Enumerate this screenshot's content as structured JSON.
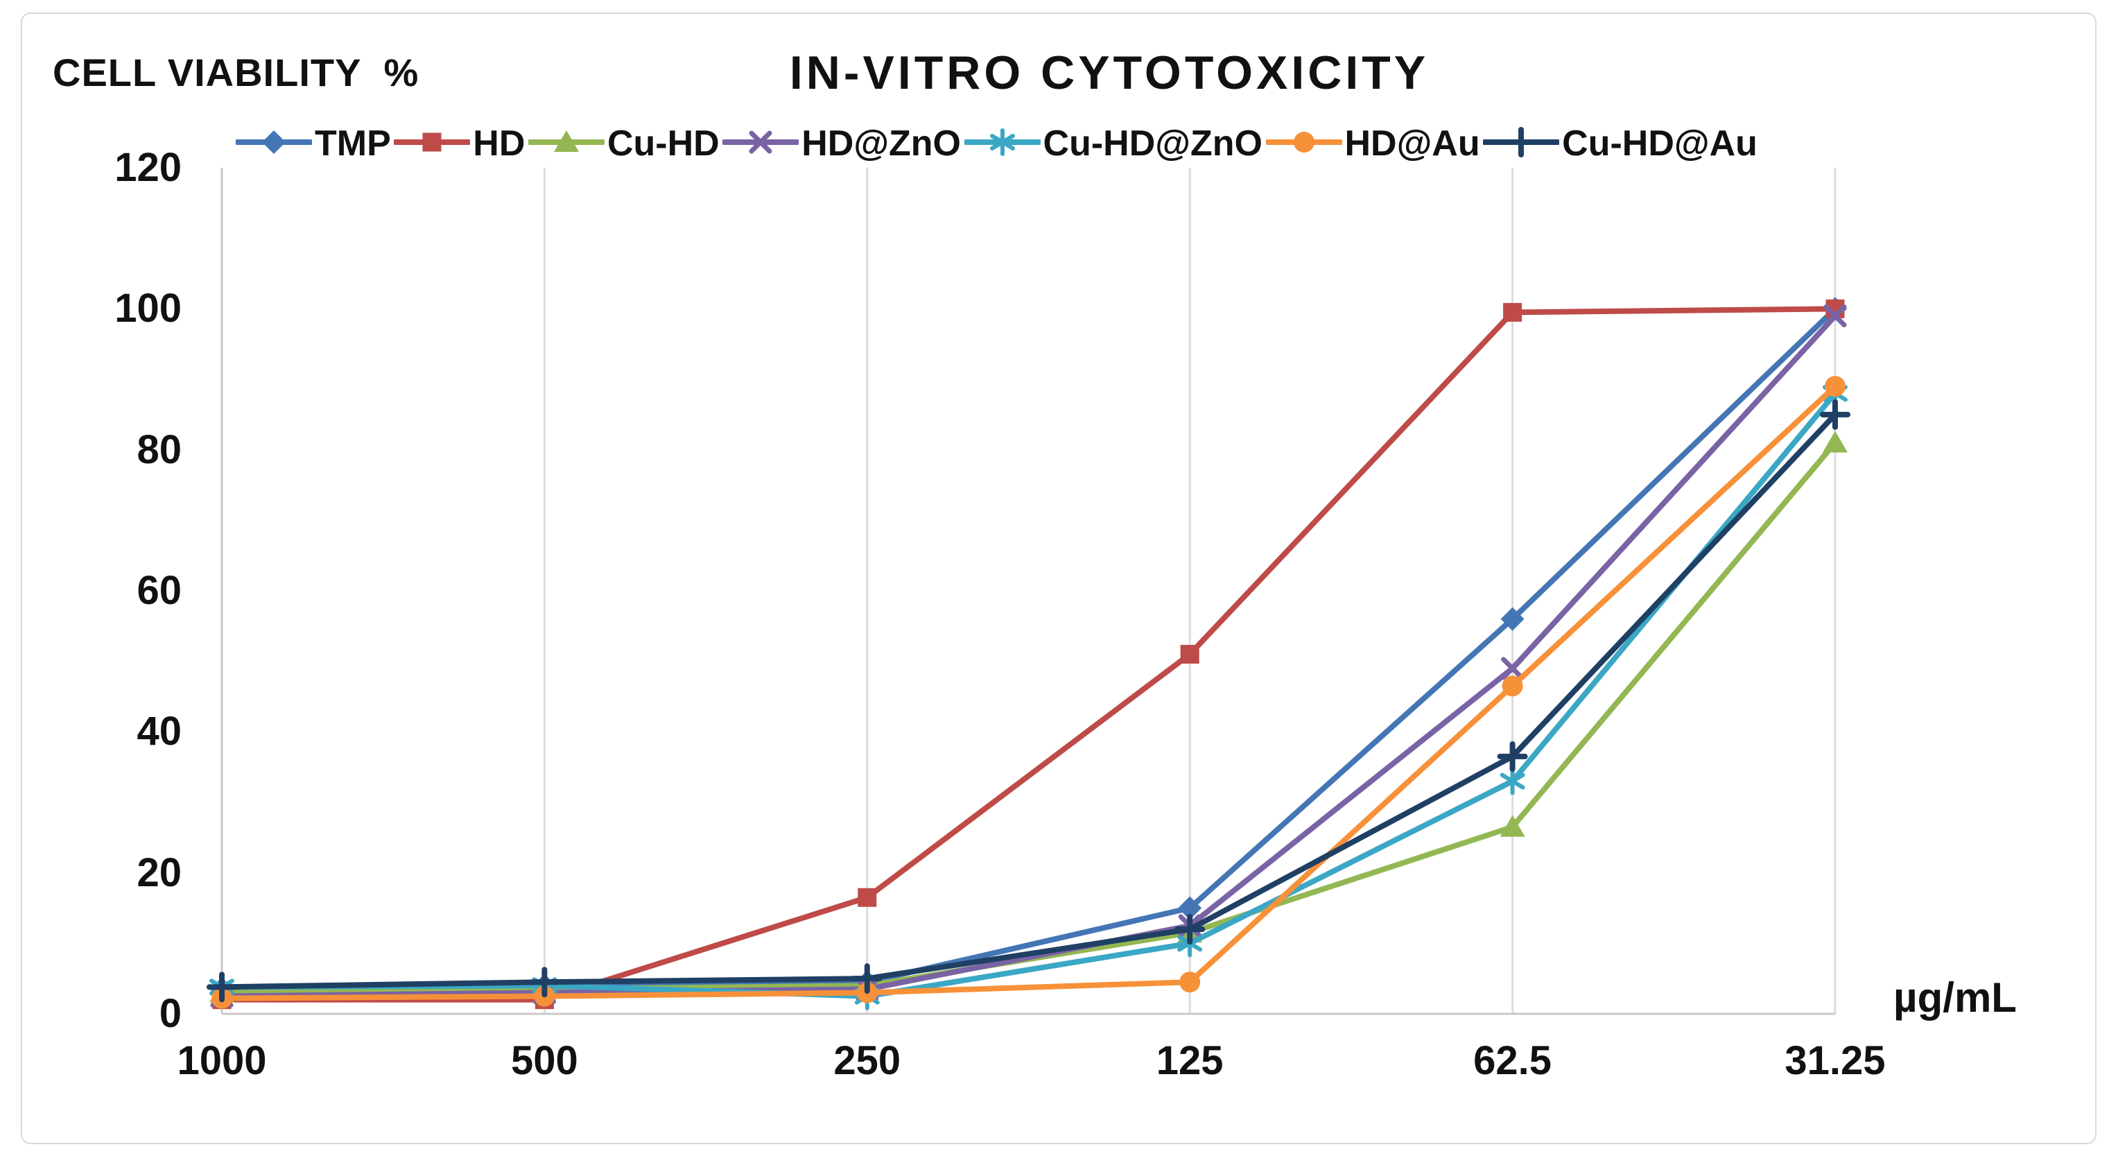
{
  "figure": {
    "y_axis_title": "CELL VIABILITY  %",
    "x_axis_unit": "µg/mL"
  },
  "chart_data": {
    "type": "line",
    "title": "IN-VITRO CYTOTOXICITY",
    "xlabel": "µg/mL",
    "ylabel": "CELL VIABILITY %",
    "categories": [
      "1000",
      "500",
      "250",
      "125",
      "62.5",
      "31.25"
    ],
    "x_axis_note": "concentration decreases left to right",
    "ylim": [
      0,
      120
    ],
    "y_ticks": [
      0,
      20,
      40,
      60,
      80,
      100,
      120
    ],
    "grid": "vertical-only",
    "legend_position": "top",
    "series": [
      {
        "name": "TMP",
        "color": "#4476B5",
        "marker": "diamond",
        "values": [
          3.5,
          4,
          4.5,
          15,
          56,
          100
        ]
      },
      {
        "name": "HD",
        "color": "#BE4B48",
        "marker": "square",
        "values": [
          2,
          2,
          16.5,
          51,
          99.5,
          100
        ]
      },
      {
        "name": "Cu-HD",
        "color": "#93B752",
        "marker": "triangle",
        "values": [
          3,
          3.5,
          4,
          11.5,
          26.5,
          81
        ]
      },
      {
        "name": "HD@ZnO",
        "color": "#7A63A5",
        "marker": "x",
        "values": [
          2.5,
          3,
          3.5,
          12.5,
          49,
          99
        ]
      },
      {
        "name": "Cu-HD@ZnO",
        "color": "#3BA7C4",
        "marker": "asterisk",
        "values": [
          3.8,
          4,
          2.5,
          10,
          33,
          88
        ]
      },
      {
        "name": "HD@Au",
        "color": "#F79139",
        "marker": "circle",
        "values": [
          2.2,
          2.5,
          3,
          4.5,
          46.5,
          89
        ]
      },
      {
        "name": "Cu-HD@Au",
        "color": "#1F4064",
        "marker": "plus",
        "values": [
          3.8,
          4.5,
          5,
          12,
          36.5,
          85
        ]
      }
    ]
  }
}
